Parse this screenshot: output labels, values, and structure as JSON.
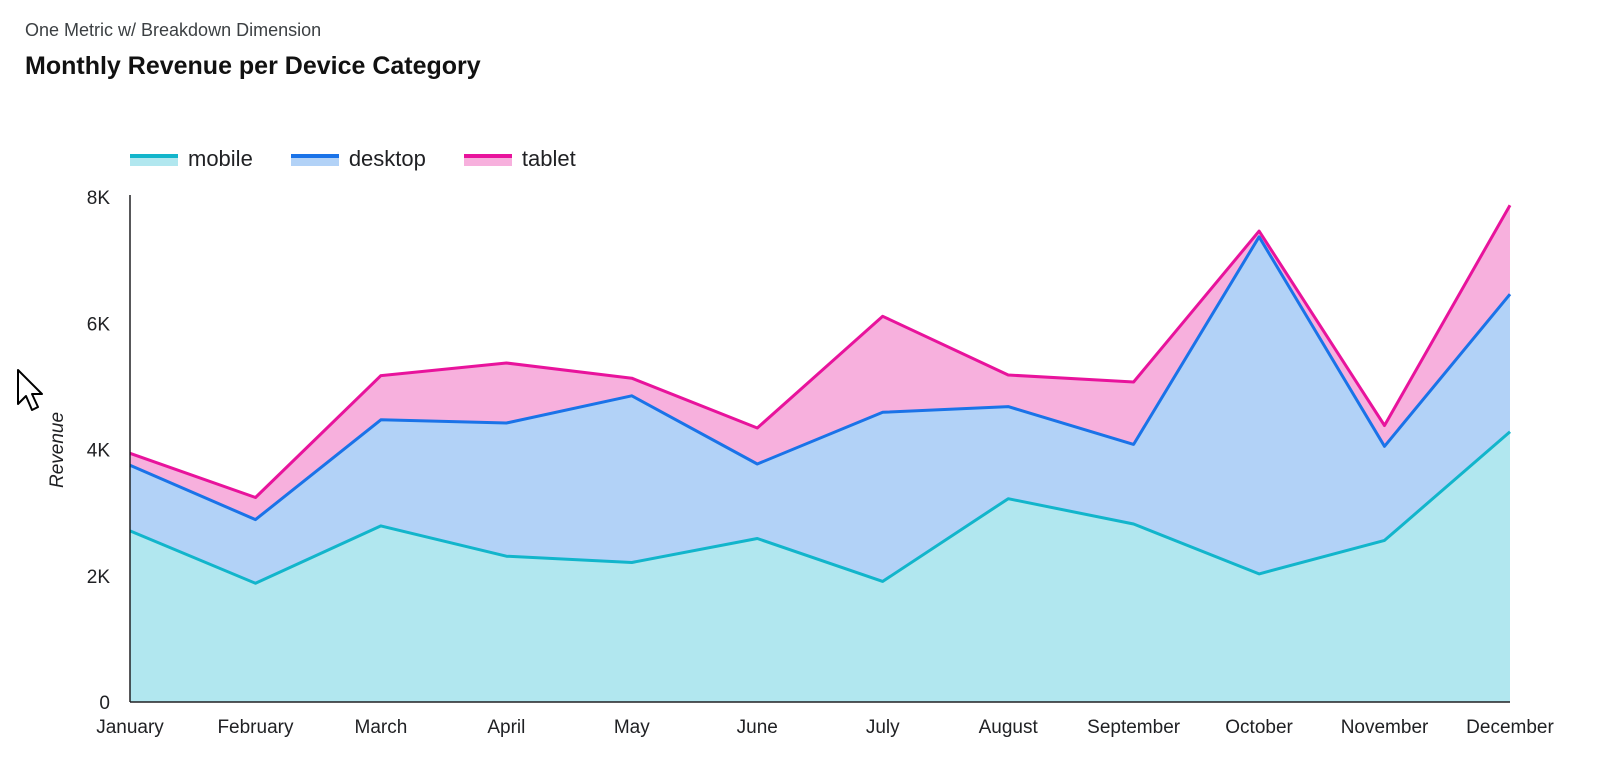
{
  "header": {
    "subtitle": "One Metric w/ Breakdown Dimension",
    "title": "Monthly Revenue per Device Category"
  },
  "chart_data": {
    "type": "area",
    "stacked": true,
    "title": "Monthly Revenue per Device Category",
    "subtitle": "One Metric w/ Breakdown Dimension",
    "xlabel": "",
    "ylabel": "Revenue",
    "ylim": [
      0,
      8000
    ],
    "yticks": [
      {
        "value": 0,
        "label": "0"
      },
      {
        "value": 2000,
        "label": "2K"
      },
      {
        "value": 4000,
        "label": "4K"
      },
      {
        "value": 6000,
        "label": "6K"
      },
      {
        "value": 8000,
        "label": "8K"
      }
    ],
    "categories": [
      "January",
      "February",
      "March",
      "April",
      "May",
      "June",
      "July",
      "August",
      "September",
      "October",
      "November",
      "December"
    ],
    "legend_position": "top-left",
    "grid": false,
    "series": [
      {
        "name": "mobile",
        "line_color": "#12b5cb",
        "fill_color": "#b1e7ef",
        "values": [
          2710,
          1880,
          2790,
          2310,
          2210,
          2590,
          1910,
          3220,
          2820,
          2030,
          2560,
          4280
        ]
      },
      {
        "name": "desktop",
        "line_color": "#1a73e8",
        "fill_color": "#b2d2f7",
        "values": [
          1040,
          1010,
          1680,
          2110,
          2640,
          1180,
          2680,
          1460,
          1260,
          5340,
          1490,
          2180
        ]
      },
      {
        "name": "tablet",
        "line_color": "#e8139c",
        "fill_color": "#f7b0dd",
        "values": [
          190,
          350,
          700,
          950,
          280,
          570,
          1520,
          500,
          990,
          90,
          330,
          1410
        ]
      }
    ]
  }
}
